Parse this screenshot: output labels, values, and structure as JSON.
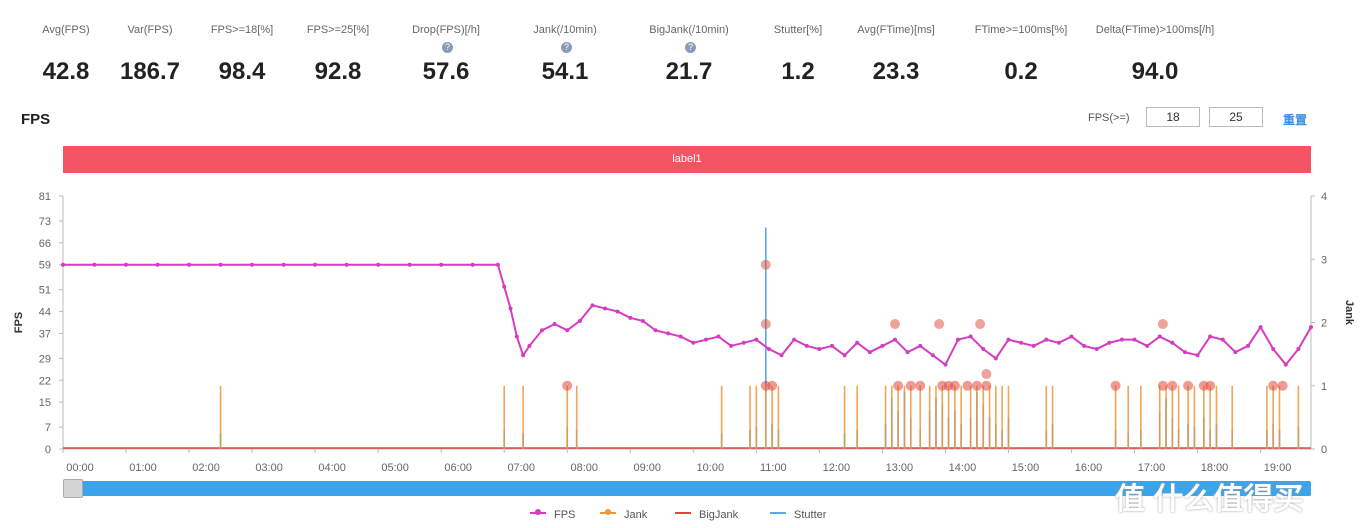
{
  "stats": [
    {
      "label": "Avg(FPS)",
      "value": "42.8"
    },
    {
      "label": "Var(FPS)",
      "value": "186.7"
    },
    {
      "label": "FPS>=18[%]",
      "value": "98.4"
    },
    {
      "label": "FPS>=25[%]",
      "value": "92.8"
    },
    {
      "label": "Drop(FPS)[/h]",
      "value": "57.6",
      "info": true
    },
    {
      "label": "Jank(/10min)",
      "value": "54.1",
      "info": true
    },
    {
      "label": "BigJank(/10min)",
      "value": "21.7",
      "info": true
    },
    {
      "label": "Stutter[%]",
      "value": "1.2"
    },
    {
      "label": "Avg(FTime)[ms]",
      "value": "23.3"
    },
    {
      "label": "FTime>=100ms[%]",
      "value": "0.2"
    },
    {
      "label": "Delta(FTime)>100ms[/h]",
      "value": "94.0"
    }
  ],
  "panel": {
    "title": "FPS",
    "threshold_label": "FPS(>=)",
    "threshold_1": "18",
    "threshold_2": "25",
    "reset_label": "重置",
    "band_label": "label1"
  },
  "watermark": "值 什么值得买",
  "colors": {
    "fps": "#d63cc2",
    "jank": "#f0963a",
    "bigjank": "#e0483c",
    "stutter": "#5aa8e6",
    "band": "#f25561"
  },
  "chart_data": {
    "type": "line",
    "title": "",
    "xlabel": "",
    "ylabel": "FPS",
    "y2label": "Jank",
    "x_ticks": [
      "00:00",
      "01:00",
      "02:00",
      "03:00",
      "04:00",
      "05:00",
      "06:00",
      "07:00",
      "08:00",
      "09:00",
      "10:00",
      "11:00",
      "12:00",
      "13:00",
      "14:00",
      "15:00",
      "16:00",
      "17:00",
      "18:00",
      "19:00"
    ],
    "y_ticks": [
      0,
      7,
      15,
      22,
      29,
      37,
      44,
      51,
      59,
      66,
      73,
      81
    ],
    "y2_ticks": [
      0,
      1,
      2,
      3,
      4
    ],
    "ylim": [
      0,
      81
    ],
    "y2lim": [
      0,
      4
    ],
    "xlim_hours": [
      0,
      19.8
    ],
    "legend": [
      "FPS",
      "Jank",
      "BigJank",
      "Stutter"
    ],
    "legend_position": "bottom",
    "series": [
      {
        "name": "FPS",
        "x_hours": [
          0,
          0.5,
          1,
          1.5,
          2,
          2.5,
          3,
          3.5,
          4,
          4.5,
          5,
          5.5,
          6,
          6.5,
          6.9,
          7.0,
          7.1,
          7.2,
          7.3,
          7.4,
          7.6,
          7.8,
          8.0,
          8.2,
          8.4,
          8.6,
          8.8,
          9.0,
          9.2,
          9.4,
          9.6,
          9.8,
          10.0,
          10.2,
          10.4,
          10.6,
          10.8,
          11.0,
          11.2,
          11.4,
          11.6,
          11.8,
          12.0,
          12.2,
          12.4,
          12.6,
          12.8,
          13.0,
          13.2,
          13.4,
          13.6,
          13.8,
          14.0,
          14.2,
          14.4,
          14.6,
          14.8,
          15.0,
          15.2,
          15.4,
          15.6,
          15.8,
          16.0,
          16.2,
          16.4,
          16.6,
          16.8,
          17.0,
          17.2,
          17.4,
          17.6,
          17.8,
          18.0,
          18.2,
          18.4,
          18.6,
          18.8,
          19.0,
          19.2,
          19.4,
          19.6,
          19.8
        ],
        "values": [
          59,
          59,
          59,
          59,
          59,
          59,
          59,
          59,
          59,
          59,
          59,
          59,
          59,
          59,
          59,
          52,
          45,
          36,
          30,
          33,
          38,
          40,
          38,
          41,
          46,
          45,
          44,
          42,
          41,
          38,
          37,
          36,
          34,
          35,
          36,
          33,
          34,
          35,
          32,
          30,
          35,
          33,
          32,
          33,
          30,
          34,
          31,
          33,
          35,
          31,
          33,
          30,
          27,
          35,
          36,
          32,
          29,
          35,
          34,
          33,
          35,
          34,
          36,
          33,
          32,
          34,
          35,
          35,
          33,
          36,
          34,
          31,
          30,
          36,
          35,
          31,
          33,
          39,
          32,
          27,
          32,
          39
        ]
      },
      {
        "name": "Jank",
        "x_hours": [
          2.5,
          7.0,
          7.3,
          8.0,
          8.15,
          10.45,
          10.9,
          11.0,
          11.15,
          11.25,
          11.35,
          12.4,
          12.6,
          13.05,
          13.15,
          13.25,
          13.35,
          13.45,
          13.6,
          13.75,
          13.85,
          13.95,
          14.05,
          14.15,
          14.25,
          14.4,
          14.5,
          14.6,
          14.7,
          14.8,
          14.9,
          15.0,
          15.6,
          15.7,
          16.7,
          16.9,
          17.1,
          17.4,
          17.5,
          17.6,
          17.7,
          17.85,
          17.95,
          18.1,
          18.2,
          18.3,
          18.55,
          19.1,
          19.2,
          19.3,
          19.6
        ],
        "values": [
          1,
          1,
          1,
          1,
          1,
          1,
          1,
          1,
          1,
          1,
          1,
          1,
          1,
          1,
          1,
          1,
          1,
          1,
          1,
          1,
          1,
          1,
          1,
          1,
          1,
          1,
          1,
          1,
          1,
          1,
          1,
          1,
          1,
          1,
          1,
          1,
          1,
          1,
          1,
          1,
          1,
          1,
          1,
          1,
          1,
          1,
          1,
          1,
          1,
          1,
          1
        ]
      },
      {
        "name": "BigJank",
        "x_hours": [
          8.0,
          11.15,
          11.25,
          13.25,
          13.45,
          13.6,
          13.95,
          14.05,
          14.15,
          14.35,
          14.5,
          14.65,
          16.7,
          17.45,
          17.6,
          17.85,
          18.1,
          18.2,
          19.2,
          19.35
        ],
        "values": [
          1,
          1,
          1,
          1,
          1,
          1,
          1,
          1,
          1,
          1,
          1,
          1,
          1,
          1,
          1,
          1,
          1,
          1,
          1,
          1
        ]
      },
      {
        "name": "Stutter",
        "x_hours": [
          2.5,
          7.0,
          7.3,
          8.0,
          8.15,
          10.45,
          10.9,
          11.0,
          11.15,
          11.25,
          11.35,
          12.4,
          12.6,
          13.05,
          13.15,
          13.25,
          13.35,
          13.45,
          13.6,
          13.75,
          13.85,
          13.95,
          14.05,
          14.15,
          14.25,
          14.4,
          14.5,
          14.6,
          14.7,
          14.8,
          14.9,
          15.0,
          15.6,
          15.7,
          16.7,
          16.9,
          17.1,
          17.4,
          17.5,
          17.6,
          17.7,
          17.85,
          17.95,
          18.1,
          18.2,
          18.3,
          18.55,
          19.1,
          19.2,
          19.3,
          19.6
        ],
        "values": [
          0.25,
          0.3,
          0.25,
          0.35,
          0.3,
          0.25,
          0.3,
          0.35,
          3.5,
          0.4,
          0.3,
          0.25,
          0.3,
          0.4,
          0.8,
          0.6,
          0.9,
          0.5,
          0.3,
          0.6,
          0.8,
          0.7,
          0.5,
          0.6,
          0.4,
          0.5,
          0.9,
          0.7,
          0.5,
          0.4,
          0.3,
          0.5,
          0.3,
          0.4,
          0.3,
          0.25,
          0.3,
          0.6,
          0.8,
          0.5,
          0.3,
          0.4,
          0.35,
          0.5,
          0.3,
          0.4,
          0.3,
          0.3,
          0.4,
          0.3,
          0.35
        ]
      }
    ],
    "markers": [
      {
        "series": "FPS",
        "x_hours": 11.15,
        "y": 59
      },
      {
        "series": "FPS",
        "x_hours": 11.15,
        "y": 40
      },
      {
        "series": "FPS",
        "x_hours": 13.2,
        "y": 40
      },
      {
        "series": "FPS",
        "x_hours": 13.9,
        "y": 40
      },
      {
        "series": "FPS",
        "x_hours": 14.55,
        "y": 40
      },
      {
        "series": "FPS",
        "x_hours": 17.45,
        "y": 40
      },
      {
        "series": "FPS",
        "x_hours": 14.65,
        "y": 24
      }
    ]
  }
}
